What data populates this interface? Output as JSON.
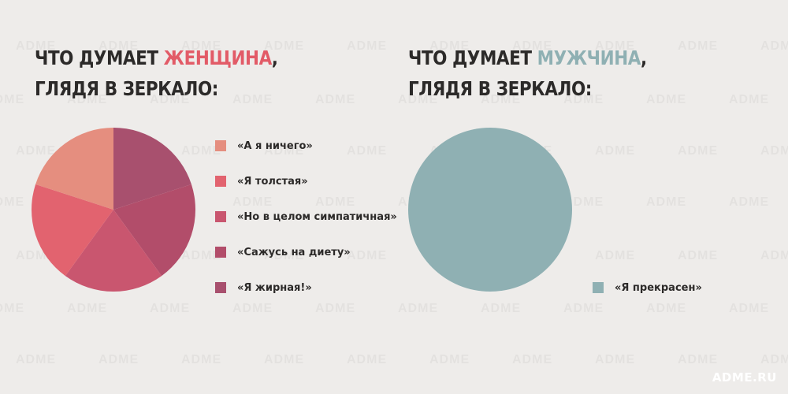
{
  "watermark_text": "ADME",
  "brand": "ADME.RU",
  "left": {
    "title_line1_prefix": "ЧТО ДУМАЕТ ",
    "title_highlight": "ЖЕНЩИНА",
    "title_line1_suffix": ",",
    "title_line2": "ГЛЯДЯ В ЗЕРКАЛО:",
    "highlight_color": "#e25b67"
  },
  "right": {
    "title_line1_prefix": "ЧТО ДУМАЕТ ",
    "title_highlight": "МУЖЧИНА",
    "title_line1_suffix": ",",
    "title_line2": "ГЛЯДЯ В ЗЕРКАЛО:",
    "highlight_color": "#8fb0b3"
  },
  "chart_data": [
    {
      "type": "pie",
      "title": "ЧТО ДУМАЕТ ЖЕНЩИНА, ГЛЯДЯ В ЗЕРКАЛО:",
      "start_angle_deg": 0,
      "slices": [
        {
          "label": "«Я жирная!»",
          "value": 20,
          "color": "#a8506e"
        },
        {
          "label": "«Сажусь на диету»",
          "value": 20,
          "color": "#b24d6a"
        },
        {
          "label": "«Но в целом симпатичная»",
          "value": 20,
          "color": "#c9566f"
        },
        {
          "label": "«Я толстая»",
          "value": 20,
          "color": "#e2636f"
        },
        {
          "label": "«А я ничего»",
          "value": 20,
          "color": "#e58e7f"
        }
      ],
      "legend_order": [
        "«А я ничего»",
        "«Я толстая»",
        "«Но в целом симпатичная»",
        "«Сажусь на диету»",
        "«Я жирная!»"
      ],
      "legend_placement": "right"
    },
    {
      "type": "pie",
      "title": "ЧТО ДУМАЕТ МУЖЧИНА, ГЛЯДЯ В ЗЕРКАЛО:",
      "start_angle_deg": 0,
      "slices": [
        {
          "label": "«Я прекрасен»",
          "value": 100,
          "color": "#8fb0b3"
        }
      ],
      "legend_order": [
        "«Я прекрасен»"
      ],
      "legend_placement": "bottom-right"
    }
  ]
}
